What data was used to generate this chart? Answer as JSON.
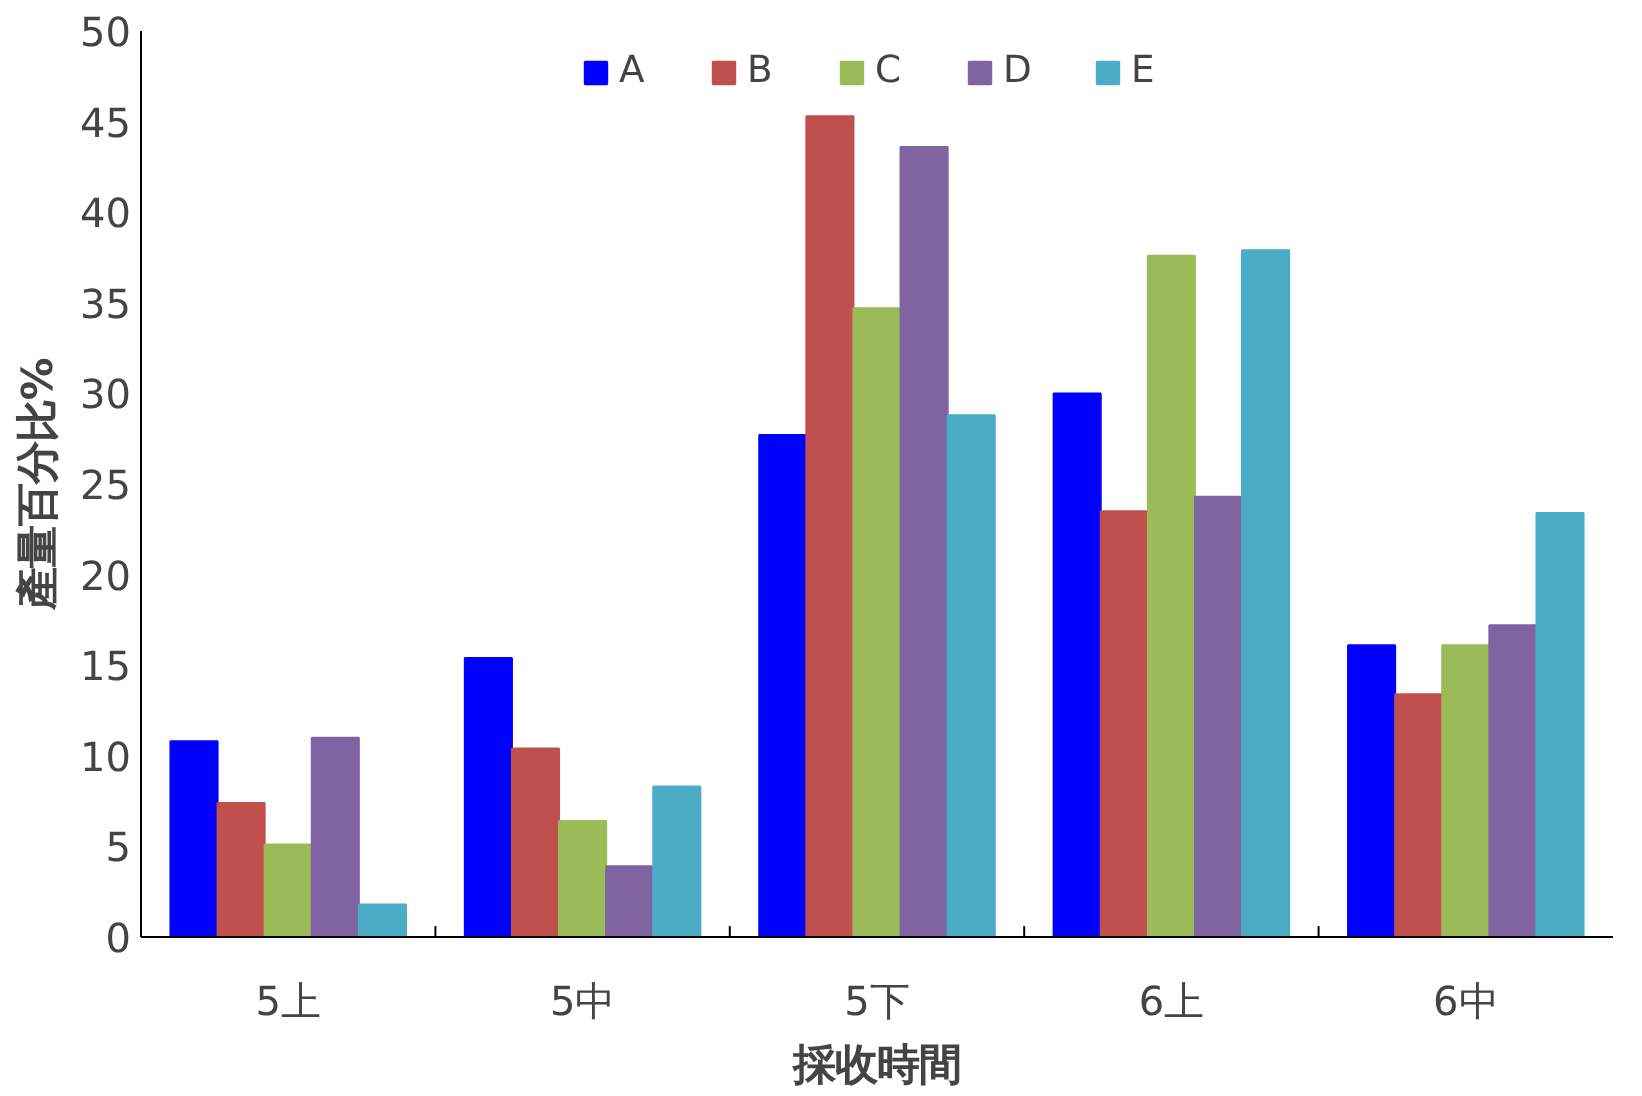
{
  "chart_data": {
    "type": "bar",
    "xlabel": "採收時間",
    "ylabel": "產量百分比%",
    "categories": [
      "5上",
      "5中",
      "5下",
      "6上",
      "6中"
    ],
    "series": [
      {
        "name": "A",
        "color": "#0000ff",
        "values": [
          10.8,
          15.4,
          27.7,
          30.0,
          16.1
        ]
      },
      {
        "name": "B",
        "color": "#c0504d",
        "values": [
          7.4,
          10.4,
          45.3,
          23.5,
          13.4
        ]
      },
      {
        "name": "C",
        "color": "#9bbb59",
        "values": [
          5.1,
          6.4,
          34.7,
          37.6,
          16.1
        ]
      },
      {
        "name": "D",
        "color": "#8064a2",
        "values": [
          11.0,
          3.9,
          43.6,
          24.3,
          17.2
        ]
      },
      {
        "name": "E",
        "color": "#4bacc6",
        "values": [
          1.8,
          8.3,
          28.8,
          37.9,
          23.4
        ]
      }
    ],
    "ylim": [
      0,
      50
    ],
    "yticks": [
      0,
      5,
      10,
      15,
      20,
      25,
      30,
      35,
      40,
      45,
      50
    ],
    "grid": false,
    "legend": "top"
  }
}
